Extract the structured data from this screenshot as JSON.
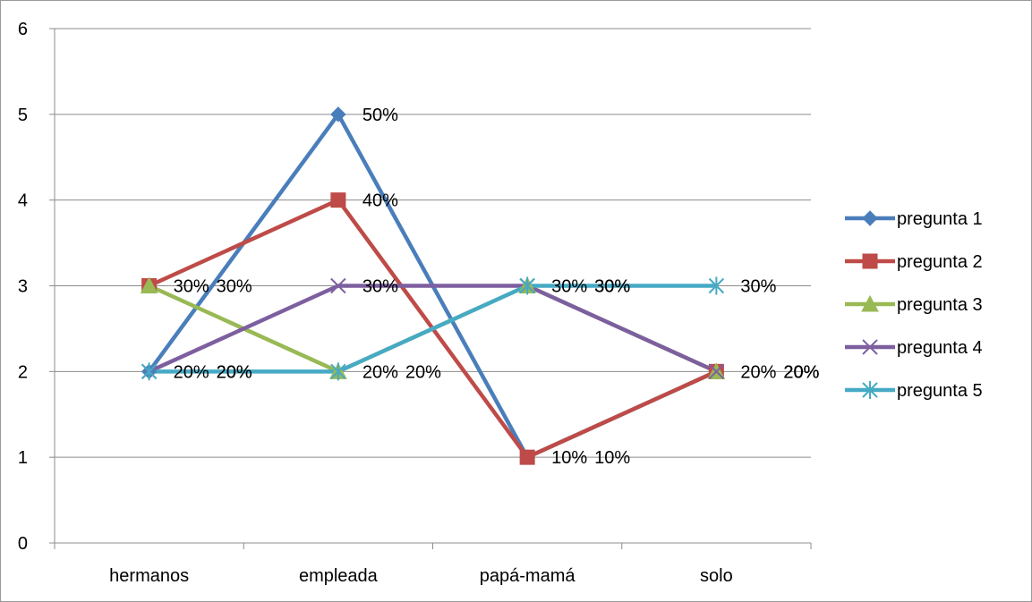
{
  "chart_data": {
    "type": "line",
    "title": "",
    "xlabel": "",
    "ylabel": "",
    "categories": [
      "hermanos",
      "empleada",
      "papá-mamá",
      "solo"
    ],
    "ylim": [
      0,
      6
    ],
    "yticks": [
      0,
      1,
      2,
      3,
      4,
      5,
      6
    ],
    "grid": true,
    "legend_position": "right",
    "series": [
      {
        "name": "pregunta 1",
        "values": [
          2,
          5,
          1,
          2
        ],
        "labels": [
          "20%",
          "50%",
          "10%",
          "20%"
        ],
        "color": "#4a7ebb",
        "marker": "diamond"
      },
      {
        "name": "pregunta 2",
        "values": [
          3,
          4,
          1,
          2
        ],
        "labels": [
          "30%",
          "40%",
          "10%",
          "20%"
        ],
        "color": "#be4b48",
        "marker": "square"
      },
      {
        "name": "pregunta 3",
        "values": [
          3,
          2,
          3,
          2
        ],
        "labels": [
          "30%",
          "20%",
          "30%",
          "20%"
        ],
        "color": "#98b954",
        "marker": "triangle"
      },
      {
        "name": "pregunta  4",
        "values": [
          2,
          3,
          3,
          2
        ],
        "labels": [
          "20%",
          "30%",
          "30%",
          "20%"
        ],
        "color": "#7d5fa0",
        "marker": "x"
      },
      {
        "name": "pregunta 5",
        "values": [
          2,
          2,
          3,
          3
        ],
        "labels": [
          "20%",
          "20%",
          "30%",
          "30%"
        ],
        "color": "#46aac5",
        "marker": "star"
      }
    ]
  }
}
